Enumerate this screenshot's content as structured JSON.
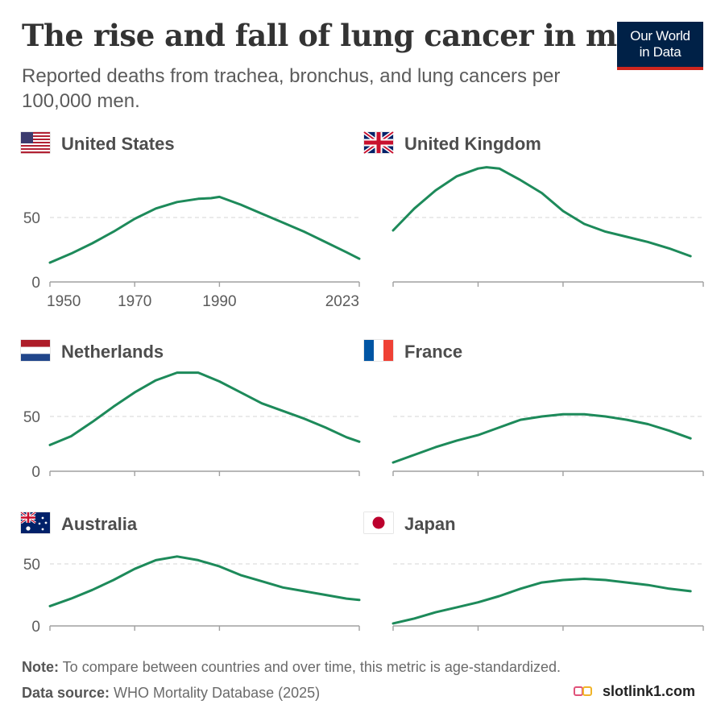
{
  "header": {
    "title": "The rise and fall of lung cancer in men",
    "subtitle": "Reported deaths from trachea, bronchus, and lung cancers per 100,000 men.",
    "logo_line1": "Our World",
    "logo_line2": "in Data"
  },
  "footer": {
    "note_label": "Note:",
    "note_text": " To compare between countries and over time, this metric is age-standardized.",
    "source_label": "Data source:",
    "source_text": " WHO Mortality Database (2025)"
  },
  "watermark": {
    "text": "slotlink1.com"
  },
  "colors": {
    "line": "#1d8a5a",
    "grid": "#dddddd",
    "axis": "#a0a0a0",
    "logo_bg": "#002147",
    "logo_bar": "#ce261e"
  },
  "chart_data": {
    "type": "line",
    "xlim": [
      1950,
      2023
    ],
    "x_ticks": [
      1950,
      1970,
      1990,
      2023
    ],
    "x_tick_labels_shown_on": "United States",
    "y_ticks": [
      0,
      50
    ],
    "grid": "horizontal dashed at 50",
    "panels": [
      {
        "name": "United States",
        "flag": "us-flag-icon",
        "ylim": [
          0,
          70
        ],
        "x": [
          1950,
          1955,
          1960,
          1965,
          1970,
          1975,
          1980,
          1985,
          1988,
          1990,
          1995,
          2000,
          2005,
          2010,
          2015,
          2020,
          2023
        ],
        "values": [
          15,
          22,
          30,
          39,
          49,
          57,
          62,
          64.5,
          65,
          66,
          60,
          53,
          46,
          39,
          31,
          23,
          18
        ]
      },
      {
        "name": "United Kingdom",
        "flag": "uk-flag-icon",
        "ylim": [
          0,
          92
        ],
        "x": [
          1950,
          1955,
          1960,
          1965,
          1970,
          1972,
          1975,
          1980,
          1985,
          1990,
          1995,
          2000,
          2005,
          2010,
          2015,
          2020
        ],
        "values": [
          40,
          57,
          71,
          82,
          88,
          89,
          88,
          79,
          69,
          55,
          45,
          39,
          35,
          31,
          26,
          20
        ]
      },
      {
        "name": "Netherlands",
        "flag": "netherlands-flag-icon",
        "ylim": [
          0,
          92
        ],
        "x": [
          1950,
          1955,
          1960,
          1965,
          1970,
          1975,
          1980,
          1985,
          1990,
          1995,
          2000,
          2005,
          2010,
          2015,
          2020,
          2023
        ],
        "values": [
          24,
          32,
          45,
          59,
          72,
          83,
          90,
          90,
          82,
          72,
          62,
          55,
          48,
          40,
          31,
          27
        ]
      },
      {
        "name": "France",
        "flag": "france-flag-icon",
        "ylim": [
          0,
          92
        ],
        "x": [
          1950,
          1955,
          1960,
          1965,
          1970,
          1975,
          1980,
          1985,
          1990,
          1995,
          2000,
          2005,
          2010,
          2015,
          2020
        ],
        "values": [
          8,
          15,
          22,
          28,
          33,
          40,
          47,
          50,
          52,
          52,
          50,
          47,
          43,
          37,
          30
        ]
      },
      {
        "name": "Australia",
        "flag": "australia-flag-icon",
        "ylim": [
          0,
          70
        ],
        "x": [
          1950,
          1955,
          1960,
          1965,
          1970,
          1975,
          1980,
          1985,
          1990,
          1995,
          2000,
          2005,
          2010,
          2015,
          2020,
          2023
        ],
        "values": [
          16,
          22,
          29,
          37,
          46,
          53,
          56,
          53,
          48,
          41,
          36,
          31,
          28,
          25,
          22,
          21
        ]
      },
      {
        "name": "Japan",
        "flag": "japan-flag-icon",
        "ylim": [
          0,
          70
        ],
        "x": [
          1950,
          1955,
          1960,
          1965,
          1970,
          1975,
          1980,
          1985,
          1990,
          1995,
          2000,
          2005,
          2010,
          2015,
          2020
        ],
        "values": [
          2,
          6,
          11,
          15,
          19,
          24,
          30,
          35,
          37,
          38,
          37,
          35,
          33,
          30,
          28
        ]
      }
    ]
  }
}
